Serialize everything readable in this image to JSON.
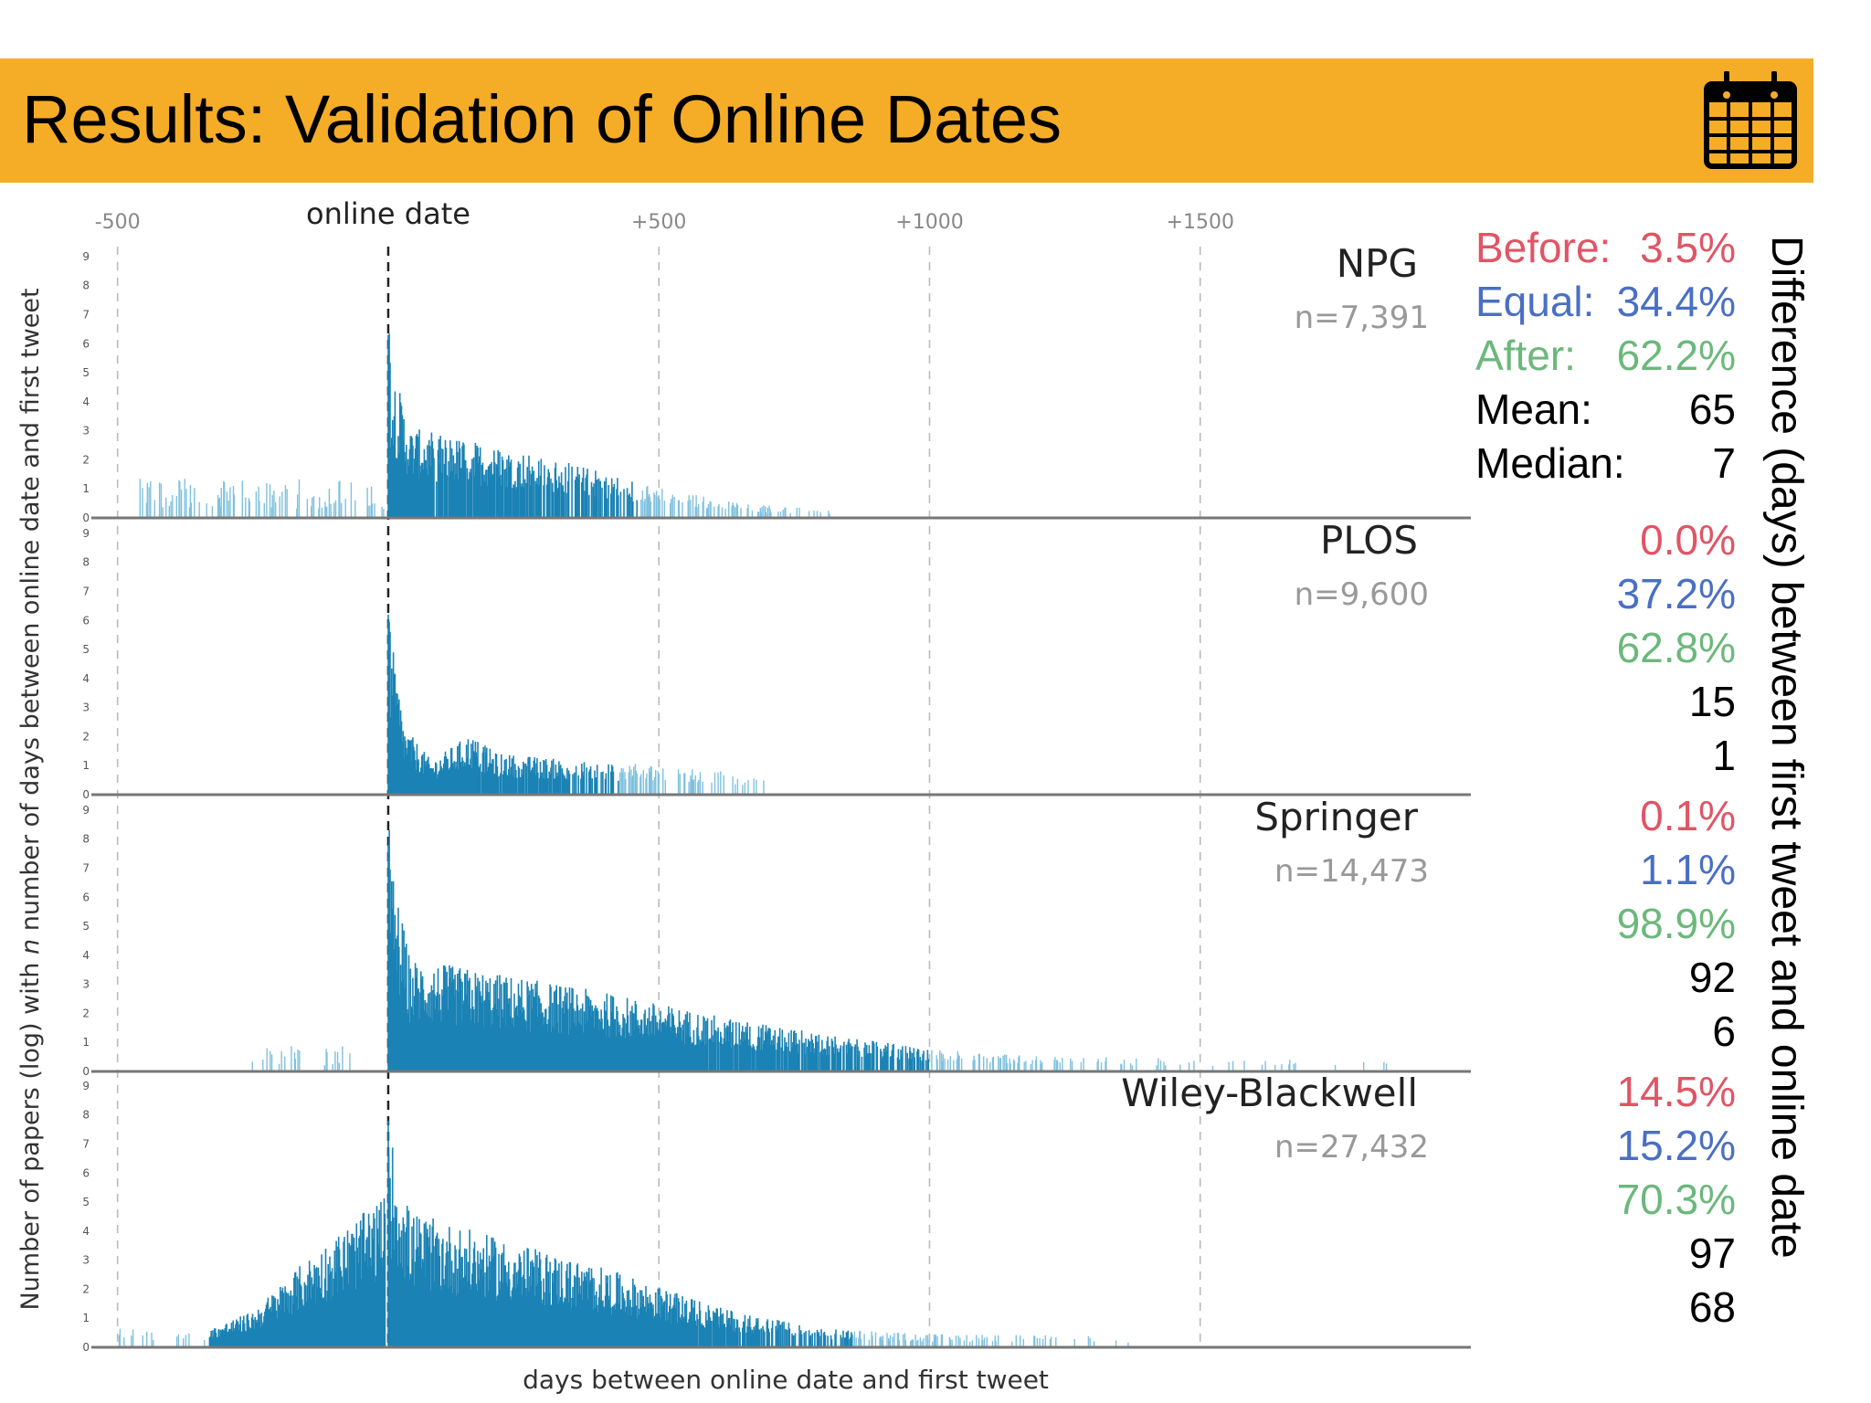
{
  "title": "Results: Validation of Online Dates",
  "colors": {
    "banner": "#f5ad27",
    "bars": "#1a82b4",
    "sparse_bars": "#7fc1de",
    "before": "#e05565",
    "equal": "#4a6fc4",
    "after": "#6cb87c",
    "neutral": "#000000"
  },
  "icons": {
    "banner_icon": "calendar-icon"
  },
  "stats_axis_label": "Difference (days) between first tweet and online date",
  "stat_labels": {
    "before": "Before:",
    "equal": "Equal:",
    "after": "After:",
    "mean": "Mean:",
    "median": "Median:"
  },
  "stats": [
    {
      "publisher": "NPG",
      "before": "3.5%",
      "equal": "34.4%",
      "after": "62.2%",
      "mean": "65",
      "median": "7"
    },
    {
      "publisher": "PLOS",
      "before": "0.0%",
      "equal": "37.2%",
      "after": "62.8%",
      "mean": "15",
      "median": "1"
    },
    {
      "publisher": "Springer",
      "before": "0.1%",
      "equal": "1.1%",
      "after": "98.9%",
      "mean": "92",
      "median": "6"
    },
    {
      "publisher": "Wiley-Blackwell",
      "before": "14.5%",
      "equal": "15.2%",
      "after": "70.3%",
      "mean": "97",
      "median": "68"
    }
  ],
  "chart_data": {
    "type": "bar",
    "xlabel": "days between online date and first tweet",
    "ylabel_parts": [
      "Number of papers (log) with ",
      "n",
      " number of days between online date and first tweet"
    ],
    "xlim": [
      -540,
      2000
    ],
    "ylim": [
      0,
      9.5
    ],
    "x_ticks": [
      {
        "value": -500,
        "label": "-500"
      },
      {
        "value": 0,
        "label": "online date"
      },
      {
        "value": 500,
        "label": "+500"
      },
      {
        "value": 1000,
        "label": "+1000"
      },
      {
        "value": 1500,
        "label": "+1500"
      }
    ],
    "y_ticks": [
      0,
      1,
      2,
      3,
      4,
      5,
      6,
      7,
      8,
      9
    ],
    "grid": "vertical dashed at x ticks",
    "panels": [
      {
        "name": "NPG",
        "n_label": "n=7,391",
        "pre": {
          "from": -460,
          "to": -5,
          "level": 0.9,
          "ramp_to": 0,
          "density": 0.32
        },
        "peak": 6.3,
        "post": {
          "to": 820,
          "shape": [
            [
              0,
              6.3
            ],
            [
              5,
              4.2
            ],
            [
              40,
              2.4
            ],
            [
              200,
              1.9
            ],
            [
              350,
              1.4
            ],
            [
              500,
              0.8
            ],
            [
              650,
              0.4
            ],
            [
              820,
              0.2
            ]
          ],
          "density": [
            [
              0,
              1.0
            ],
            [
              200,
              0.9
            ],
            [
              400,
              0.6
            ],
            [
              600,
              0.3
            ],
            [
              820,
              0.12
            ]
          ]
        }
      },
      {
        "name": "PLOS",
        "n_label": "n=9,600",
        "pre": null,
        "peak": 6.2,
        "post": {
          "to": 700,
          "shape": [
            [
              0,
              6.2
            ],
            [
              5,
              4.2
            ],
            [
              30,
              1.8
            ],
            [
              80,
              0.9
            ],
            [
              150,
              1.6
            ],
            [
              200,
              1.1
            ],
            [
              350,
              0.9
            ],
            [
              500,
              0.8
            ],
            [
              700,
              0.5
            ]
          ],
          "density": [
            [
              0,
              1.0
            ],
            [
              250,
              0.9
            ],
            [
              450,
              0.45
            ],
            [
              700,
              0.15
            ]
          ]
        }
      },
      {
        "name": "Springer",
        "n_label": "n=14,473",
        "pre": {
          "from": -260,
          "to": -70,
          "level": 0.6,
          "ramp_to": 0,
          "density": 0.12
        },
        "peak": 7.8,
        "post": {
          "to": 1850,
          "shape": [
            [
              0,
              7.8
            ],
            [
              5,
              5.5
            ],
            [
              40,
              3.0
            ],
            [
              200,
              2.6
            ],
            [
              400,
              2.1
            ],
            [
              600,
              1.5
            ],
            [
              800,
              1.0
            ],
            [
              1000,
              0.6
            ],
            [
              1200,
              0.4
            ],
            [
              1850,
              0.3
            ]
          ],
          "density": [
            [
              0,
              1.0
            ],
            [
              500,
              1.0
            ],
            [
              800,
              0.85
            ],
            [
              1000,
              0.5
            ],
            [
              1300,
              0.12
            ],
            [
              1850,
              0.03
            ]
          ]
        }
      },
      {
        "name": "Wiley-Blackwell",
        "n_label": "n=27,432",
        "pre": {
          "from": -330,
          "to": -5,
          "level": 0.6,
          "ramp_to": 4.2,
          "density": 1.0,
          "shape": [
            [
              -330,
              0.5
            ],
            [
              -250,
              1.0
            ],
            [
              -160,
              2.3
            ],
            [
              -80,
              3.3
            ],
            [
              -20,
              4.0
            ],
            [
              -5,
              4.2
            ]
          ]
        },
        "sparse_left": {
          "from": -500,
          "to": -330,
          "level": 0.5,
          "density": 0.1
        },
        "peak": 7.8,
        "post": {
          "to": 1400,
          "shape": [
            [
              0,
              7.8
            ],
            [
              5,
              5.6
            ],
            [
              40,
              3.6
            ],
            [
              200,
              2.9
            ],
            [
              400,
              2.1
            ],
            [
              600,
              1.1
            ],
            [
              800,
              0.5
            ],
            [
              1000,
              0.35
            ],
            [
              1400,
              0.3
            ]
          ],
          "density": [
            [
              0,
              1.0
            ],
            [
              550,
              1.0
            ],
            [
              800,
              0.6
            ],
            [
              1000,
              0.25
            ],
            [
              1400,
              0.05
            ]
          ]
        }
      }
    ]
  }
}
